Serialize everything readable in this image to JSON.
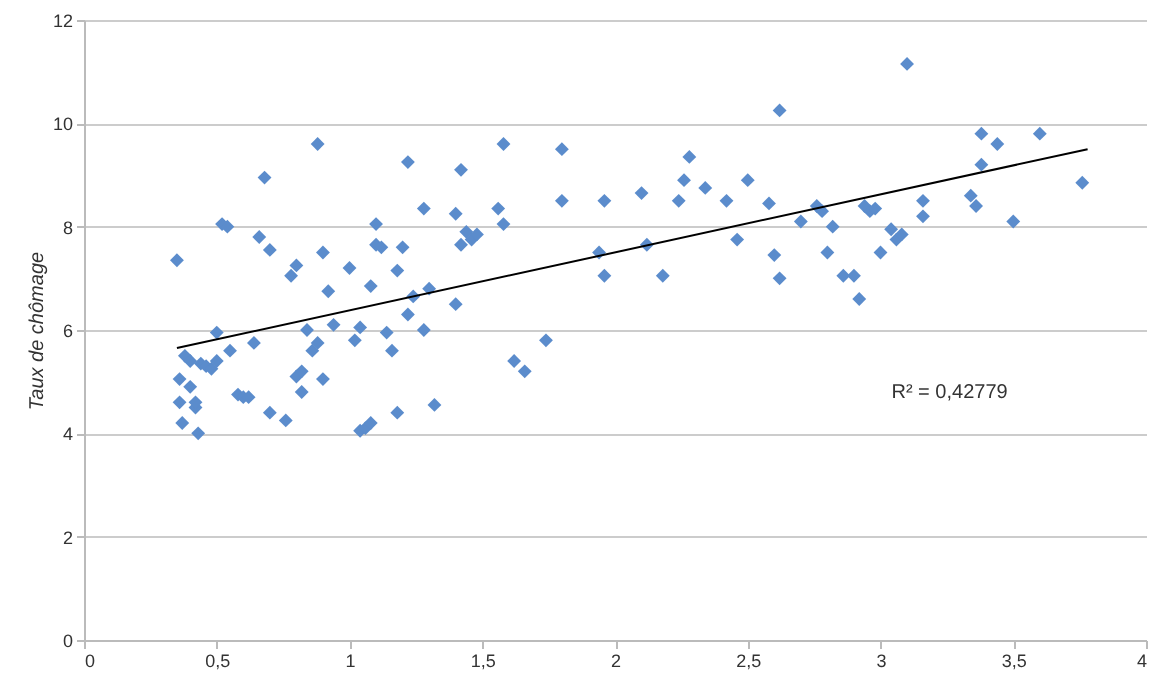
{
  "chart_data": {
    "type": "scatter",
    "ylabel": "Taux de chômage",
    "xlim": [
      0,
      4
    ],
    "ylim": [
      0,
      12
    ],
    "xticks": [
      0,
      {
        "value": 0.5,
        "label": "0,5"
      },
      1,
      {
        "value": 1.5,
        "label": "1,5"
      },
      2,
      {
        "value": 2.5,
        "label": "2,5"
      },
      3,
      {
        "value": 3.5,
        "label": "3,5"
      },
      4
    ],
    "yticks": [
      0,
      2,
      4,
      6,
      8,
      10,
      12
    ],
    "grid": "y",
    "annotations": [
      "R² = 0,42779"
    ],
    "series": [
      {
        "color": "#5b8ccc",
        "marker": "diamond",
        "x": [
          0.35,
          0.36,
          0.36,
          0.37,
          0.38,
          0.4,
          0.4,
          0.42,
          0.42,
          0.43,
          0.44,
          0.46,
          0.48,
          0.5,
          0.5,
          0.52,
          0.54,
          0.55,
          0.58,
          0.6,
          0.62,
          0.64,
          0.66,
          0.68,
          0.7,
          0.7,
          0.76,
          0.78,
          0.8,
          0.8,
          0.82,
          0.82,
          0.84,
          0.86,
          0.88,
          0.88,
          0.9,
          0.9,
          0.92,
          0.94,
          1.0,
          1.02,
          1.04,
          1.04,
          1.06,
          1.08,
          1.08,
          1.1,
          1.1,
          1.12,
          1.14,
          1.16,
          1.18,
          1.18,
          1.2,
          1.22,
          1.22,
          1.24,
          1.28,
          1.28,
          1.3,
          1.32,
          1.4,
          1.4,
          1.42,
          1.42,
          1.44,
          1.46,
          1.48,
          1.56,
          1.58,
          1.58,
          1.62,
          1.66,
          1.74,
          1.8,
          1.8,
          1.94,
          1.96,
          1.96,
          2.1,
          2.12,
          2.18,
          2.24,
          2.26,
          2.28,
          2.34,
          2.42,
          2.46,
          2.5,
          2.58,
          2.6,
          2.62,
          2.62,
          2.7,
          2.76,
          2.78,
          2.82,
          2.8,
          2.86,
          2.9,
          2.92,
          2.94,
          2.96,
          2.98,
          3.0,
          3.04,
          3.06,
          3.08,
          3.1,
          3.16,
          3.16,
          3.34,
          3.36,
          3.38,
          3.38,
          3.44,
          3.5,
          3.6,
          3.76
        ],
        "values": [
          7.35,
          5.05,
          4.6,
          4.2,
          5.5,
          5.4,
          4.9,
          4.5,
          4.6,
          4.0,
          5.35,
          5.3,
          5.25,
          5.4,
          5.95,
          8.05,
          8.0,
          5.6,
          4.75,
          4.7,
          4.7,
          5.75,
          7.8,
          8.95,
          7.55,
          4.4,
          4.25,
          7.05,
          7.25,
          5.1,
          4.8,
          5.2,
          6.0,
          5.6,
          9.6,
          5.75,
          7.5,
          5.05,
          6.75,
          6.1,
          7.2,
          5.8,
          4.05,
          6.05,
          4.1,
          4.2,
          6.85,
          8.05,
          7.65,
          7.6,
          5.95,
          5.6,
          7.15,
          4.4,
          7.6,
          6.3,
          9.25,
          6.65,
          6.0,
          8.35,
          6.8,
          4.55,
          8.25,
          6.5,
          7.65,
          9.1,
          7.9,
          7.75,
          7.85,
          8.35,
          9.6,
          8.05,
          5.4,
          5.2,
          5.8,
          9.5,
          8.5,
          7.5,
          8.5,
          7.05,
          8.65,
          7.65,
          7.05,
          8.5,
          8.9,
          9.35,
          8.75,
          8.5,
          7.75,
          8.9,
          8.45,
          7.45,
          10.25,
          7.0,
          8.1,
          8.4,
          8.3,
          8.0,
          7.5,
          7.05,
          7.05,
          6.6,
          8.4,
          8.3,
          8.35,
          7.5,
          7.95,
          7.75,
          7.85,
          11.15,
          8.2,
          8.5,
          8.6,
          8.4,
          9.2,
          9.8,
          9.6,
          8.1,
          9.8,
          8.85
        ]
      },
      {
        "type": "line",
        "color": "#000000",
        "x": [
          0.35,
          3.78
        ],
        "values": [
          5.65,
          9.5
        ]
      }
    ]
  }
}
